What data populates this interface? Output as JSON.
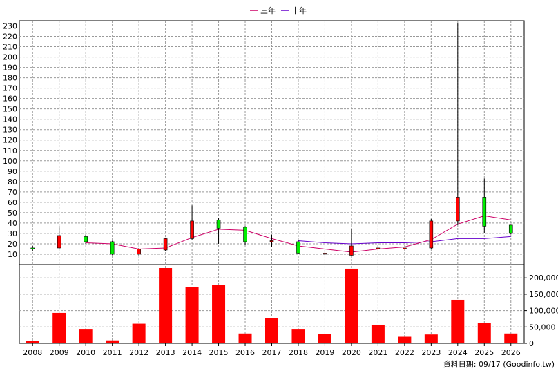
{
  "chart_data": {
    "type": "candlestick",
    "legend": {
      "position": "top-center",
      "items": [
        {
          "label": "三年",
          "color": "#cc0066"
        },
        {
          "label": "十年",
          "color": "#6600cc"
        }
      ]
    },
    "x": [
      "2008",
      "2009",
      "2010",
      "2011",
      "2012",
      "2013",
      "2014",
      "2015",
      "2016",
      "2017",
      "2018",
      "2019",
      "2020",
      "2021",
      "2022",
      "2023",
      "2024",
      "2025",
      "2026"
    ],
    "price": {
      "ylim": [
        0,
        235
      ],
      "ticks": [
        10,
        20,
        30,
        40,
        50,
        60,
        70,
        80,
        90,
        100,
        110,
        120,
        130,
        140,
        150,
        160,
        170,
        180,
        190,
        200,
        210,
        220,
        230
      ],
      "grid": true,
      "candles": [
        {
          "x": "2008",
          "open": 16,
          "close": 15,
          "high": 18,
          "low": 13
        },
        {
          "x": "2009",
          "open": 16,
          "close": 28,
          "high": 37,
          "low": 15
        },
        {
          "x": "2010",
          "open": 27,
          "close": 22,
          "high": 29,
          "low": 20
        },
        {
          "x": "2011",
          "open": 22,
          "close": 10,
          "high": 23,
          "low": 9
        },
        {
          "x": "2012",
          "open": 10,
          "close": 15,
          "high": 16,
          "low": 8
        },
        {
          "x": "2013",
          "open": 14,
          "close": 25,
          "high": 26,
          "low": 13
        },
        {
          "x": "2014",
          "open": 25,
          "close": 42,
          "high": 57,
          "low": 24
        },
        {
          "x": "2015",
          "open": 43,
          "close": 35,
          "high": 45,
          "low": 20
        },
        {
          "x": "2016",
          "open": 36,
          "close": 22,
          "high": 37,
          "low": 19
        },
        {
          "x": "2017",
          "open": 23,
          "close": 23,
          "high": 29,
          "low": 17
        },
        {
          "x": "2018",
          "open": 22,
          "close": 11,
          "high": 23,
          "low": 10
        },
        {
          "x": "2019",
          "open": 11,
          "close": 11,
          "high": 14,
          "low": 9
        },
        {
          "x": "2020",
          "open": 9,
          "close": 18,
          "high": 34,
          "low": 8
        },
        {
          "x": "2021",
          "open": 16,
          "close": 16,
          "high": 19,
          "low": 15
        },
        {
          "x": "2022",
          "open": 16,
          "close": 16,
          "high": 16,
          "low": 16
        },
        {
          "x": "2023",
          "open": 16,
          "close": 42,
          "high": 44,
          "low": 15
        },
        {
          "x": "2024",
          "open": 42,
          "close": 65,
          "high": 233,
          "low": 38
        },
        {
          "x": "2025",
          "open": 65,
          "close": 37,
          "high": 83,
          "low": 30
        },
        {
          "x": "2026",
          "open": 38,
          "close": 30,
          "high": 38,
          "low": 29
        }
      ],
      "lines": [
        {
          "name": "三年",
          "color": "#cc0066",
          "values": [
            null,
            null,
            21,
            20,
            15,
            16,
            26,
            34,
            33,
            25,
            18,
            15,
            12,
            15,
            17,
            24,
            39,
            47,
            43
          ]
        },
        {
          "name": "十年",
          "color": "#6600cc",
          "values": [
            null,
            null,
            null,
            null,
            null,
            null,
            null,
            null,
            null,
            null,
            23,
            21,
            20,
            21,
            21,
            22,
            25,
            25,
            27
          ]
        }
      ]
    },
    "volume": {
      "ylim": [
        0,
        230000
      ],
      "ticks": [
        0,
        50000,
        100000,
        150000,
        200000
      ],
      "tick_labels": [
        "0",
        "50,000",
        "100,000",
        "150,000",
        "200,000"
      ],
      "color": "#ff0000",
      "values": [
        7000,
        93000,
        42000,
        9000,
        60000,
        230000,
        172000,
        178000,
        30000,
        78000,
        42000,
        28000,
        228000,
        57000,
        20000,
        27000,
        133000,
        63000,
        30000
      ]
    },
    "footer": "資料日期: 09/17  (Goodinfo.tw)"
  }
}
